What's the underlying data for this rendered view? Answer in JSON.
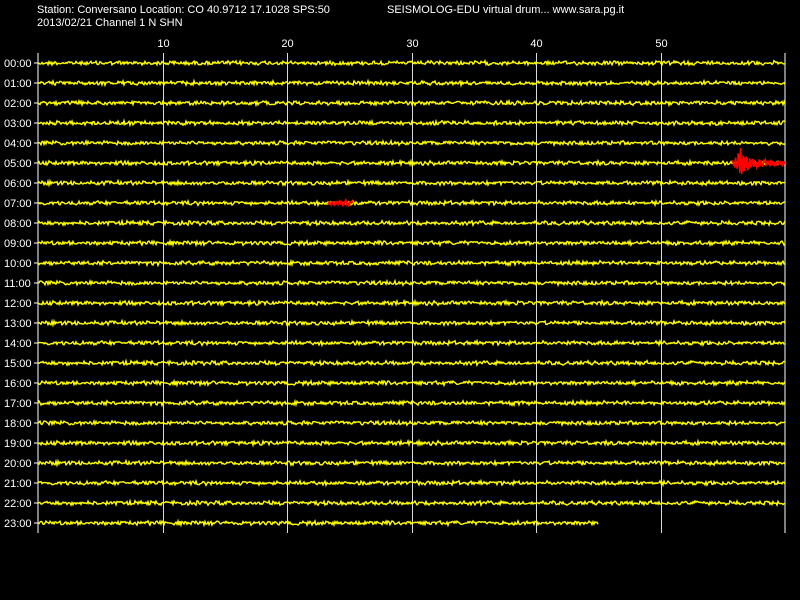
{
  "header": {
    "station_line": "Station: Conversano Location: CO 40.9712 17.1028 SPS:50",
    "brand_line": "SEISMOLOG-EDU virtual drum... www.sara.pg.it",
    "date_line": "2013/02/21  Channel 1 N SHN"
  },
  "colors": {
    "background": "#000000",
    "trace": "#ffff00",
    "event": "#ff0000",
    "grid": "#ffffff",
    "text": "#ffffff"
  },
  "chart_data": {
    "type": "line",
    "title": "",
    "xlabel": "",
    "ylabel": "",
    "xlim": [
      0,
      60
    ],
    "x_ticks": [
      10,
      20,
      30,
      40,
      50
    ],
    "grid": true,
    "rows": [
      {
        "label": "00:00",
        "end_minute": 60
      },
      {
        "label": "01:00",
        "end_minute": 60
      },
      {
        "label": "02:00",
        "end_minute": 60
      },
      {
        "label": "03:00",
        "end_minute": 60
      },
      {
        "label": "04:00",
        "end_minute": 60
      },
      {
        "label": "05:00",
        "end_minute": 60
      },
      {
        "label": "06:00",
        "end_minute": 60
      },
      {
        "label": "07:00",
        "end_minute": 60
      },
      {
        "label": "08:00",
        "end_minute": 60
      },
      {
        "label": "09:00",
        "end_minute": 60
      },
      {
        "label": "10:00",
        "end_minute": 60
      },
      {
        "label": "11:00",
        "end_minute": 60
      },
      {
        "label": "12:00",
        "end_minute": 60
      },
      {
        "label": "13:00",
        "end_minute": 60
      },
      {
        "label": "14:00",
        "end_minute": 60
      },
      {
        "label": "15:00",
        "end_minute": 60
      },
      {
        "label": "16:00",
        "end_minute": 60
      },
      {
        "label": "17:00",
        "end_minute": 60
      },
      {
        "label": "18:00",
        "end_minute": 60
      },
      {
        "label": "19:00",
        "end_minute": 60
      },
      {
        "label": "20:00",
        "end_minute": 60
      },
      {
        "label": "21:00",
        "end_minute": 60
      },
      {
        "label": "22:00",
        "end_minute": 60
      },
      {
        "label": "23:00",
        "end_minute": 45
      }
    ],
    "events": [
      {
        "row": "05:00",
        "start_minute": 55.8,
        "end_minute": 60,
        "color": "#ff0000"
      },
      {
        "row": "07:00",
        "start_minute": 23.3,
        "end_minute": 25.3,
        "color": "#ff0000"
      }
    ]
  }
}
